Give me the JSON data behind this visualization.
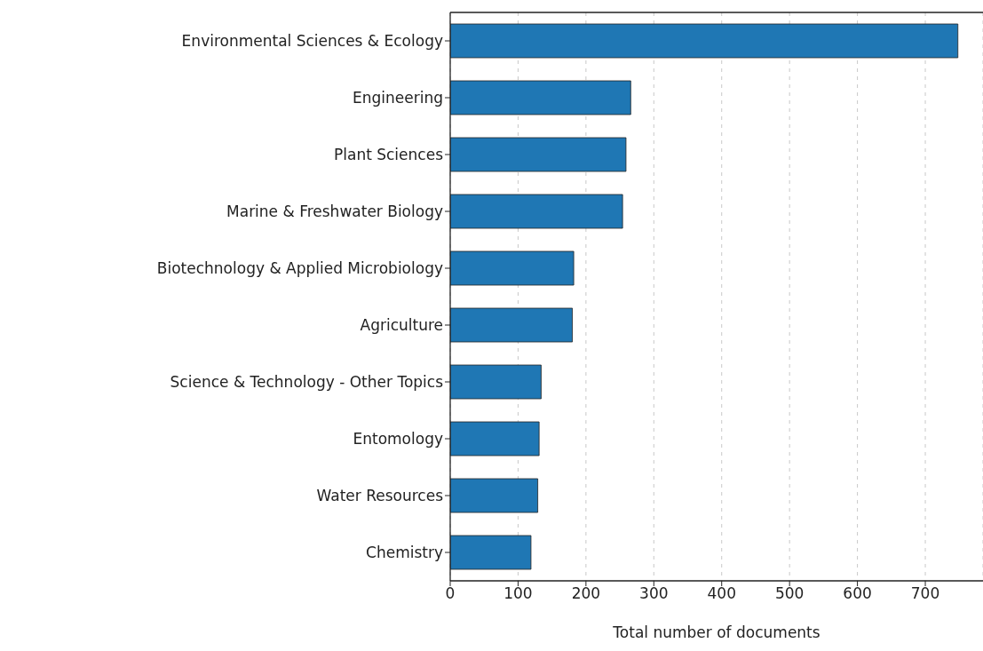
{
  "chart_data": {
    "type": "bar",
    "orientation": "horizontal",
    "xlabel": "Total number of documents",
    "categories": [
      "Environmental Sciences & Ecology",
      "Engineering",
      "Plant Sciences",
      "Marine & Freshwater Biology",
      "Biotechnology & Applied Microbiology",
      "Agriculture",
      "Science & Technology - Other Topics",
      "Entomology",
      "Water Resources",
      "Chemistry"
    ],
    "values": [
      748,
      266,
      259,
      254,
      182,
      180,
      134,
      131,
      129,
      119
    ],
    "color": "#1f77b4",
    "xlim": [
      0,
      785
    ],
    "xticks": [
      0,
      100,
      200,
      300,
      400,
      500,
      600,
      700
    ],
    "grid": "x"
  }
}
